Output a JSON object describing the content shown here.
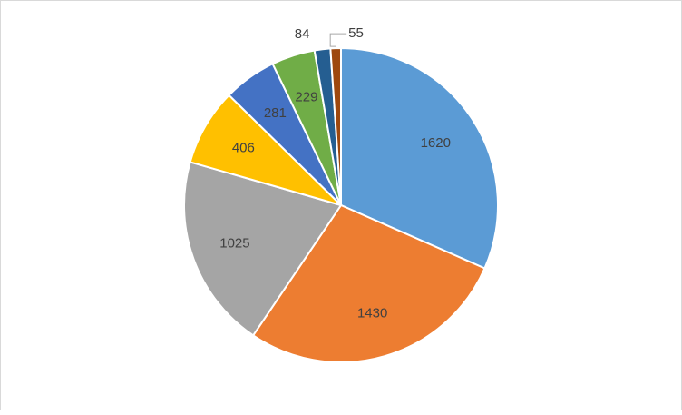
{
  "chart_data": {
    "type": "pie",
    "values": [
      1620,
      1430,
      1025,
      406,
      281,
      229,
      84,
      55
    ],
    "colors": [
      "#5b9bd5",
      "#ed7d31",
      "#a5a5a5",
      "#ffc000",
      "#4472c4",
      "#70ad47",
      "#255e91",
      "#9e480e"
    ]
  }
}
